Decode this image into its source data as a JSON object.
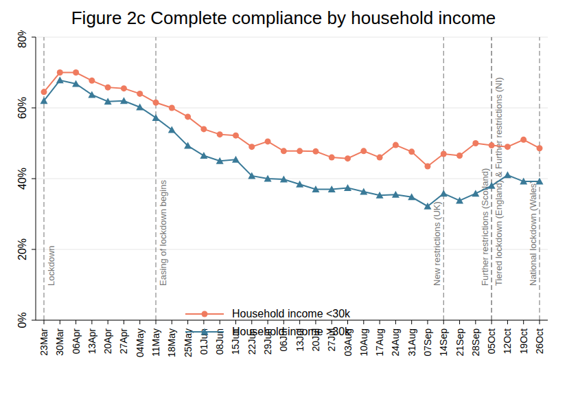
{
  "chart_data": {
    "type": "line",
    "title": "Figure 2c Complete compliance by household income",
    "categories": [
      "23Mar",
      "30Mar",
      "06Apr",
      "13Apr",
      "20Apr",
      "27Apr",
      "04May",
      "11May",
      "18May",
      "25May",
      "01Jun",
      "08Jun",
      "15Jun",
      "22Jun",
      "29Jun",
      "06Jul",
      "13Jul",
      "20Jul",
      "27Jul",
      "03Aug",
      "10Aug",
      "17Aug",
      "24Aug",
      "31Aug",
      "07Sep",
      "14Sep",
      "21Sep",
      "28Sep",
      "05Oct",
      "12Oct",
      "19Oct",
      "26Oct"
    ],
    "series": [
      {
        "name": "Household income <30k",
        "color": "#ef7b5f",
        "marker": "circle",
        "line_style": "solid",
        "values": [
          64.5,
          70,
          70,
          67.7,
          65.8,
          65.5,
          64,
          61.5,
          60,
          57.5,
          54,
          52.5,
          52.2,
          49,
          50.5,
          47.8,
          47.8,
          47.7,
          46,
          45.7,
          47.8,
          46,
          49.5,
          47.6,
          43.5,
          47,
          46.5,
          50,
          49.4,
          49,
          51,
          48.6
        ]
      },
      {
        "name": "Household income >30k",
        "color": "#3a7a98",
        "marker": "triangle",
        "line_style": "solid",
        "values": [
          62,
          67.8,
          66.8,
          63.7,
          61.8,
          62,
          60.2,
          57.2,
          53.8,
          49.3,
          46.5,
          45,
          45.4,
          40.8,
          40,
          39.8,
          38.4,
          37,
          37,
          37.4,
          36.3,
          35.3,
          35.5,
          34.8,
          32.2,
          35.8,
          33.8,
          35.8,
          38,
          41,
          39.2,
          39.2
        ]
      }
    ],
    "ylim": [
      0,
      80
    ],
    "yticks": [
      {
        "value": 0,
        "label": "0%"
      },
      {
        "value": 20,
        "label": "20%"
      },
      {
        "value": 40,
        "label": "40%"
      },
      {
        "value": 60,
        "label": "60%"
      },
      {
        "value": 80,
        "label": "80%"
      }
    ],
    "grid": true,
    "legend": "lower center",
    "annotations": [
      {
        "x": "23Mar",
        "text": "Lockdown"
      },
      {
        "x": "11May",
        "text": "Easing of lockdown begins"
      },
      {
        "x": "14Sep",
        "text": "New restrictions (UK)"
      },
      {
        "x": "05Oct",
        "text": "Further restrictions (Scotland)"
      },
      {
        "x": "05Oct",
        "text": "Tiered lockdown (England) & Further restrictions (NI)"
      },
      {
        "x": "26Oct",
        "text": "National lockdown (Wales)"
      }
    ]
  }
}
